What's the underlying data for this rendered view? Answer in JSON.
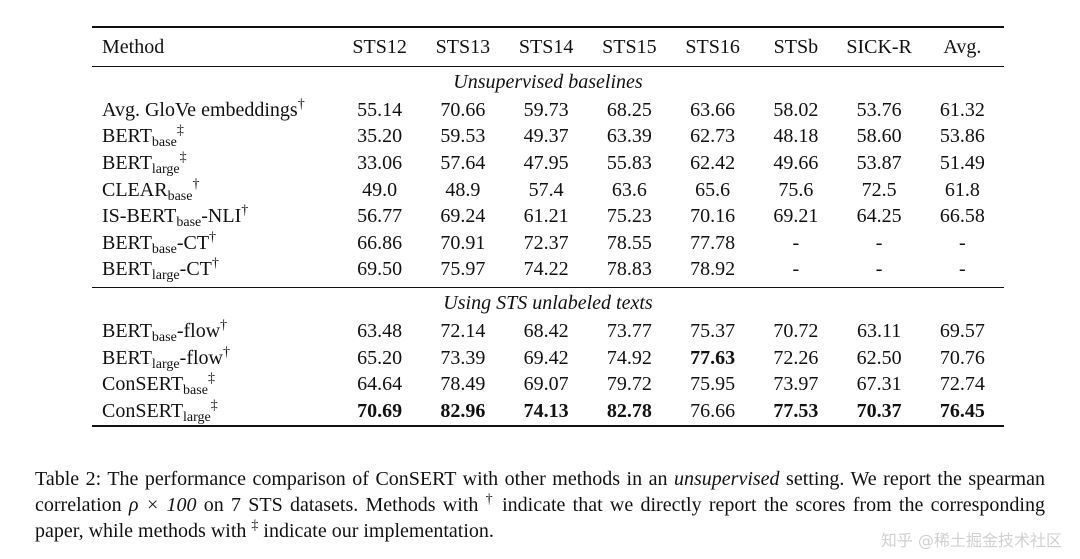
{
  "table": {
    "headers": [
      "Method",
      "STS12",
      "STS13",
      "STS14",
      "STS15",
      "STS16",
      "STSb",
      "SICK-R",
      "Avg."
    ],
    "sections": [
      {
        "title": "Unsupervised baselines",
        "rows": [
          {
            "name": "Avg. GloVe embeddings",
            "sub": "",
            "suffix": "",
            "mark": "†",
            "values": [
              "55.14",
              "70.66",
              "59.73",
              "68.25",
              "63.66",
              "58.02",
              "53.76",
              "61.32"
            ],
            "bold": []
          },
          {
            "name": "BERT",
            "sub": "base",
            "suffix": "",
            "mark": "‡",
            "values": [
              "35.20",
              "59.53",
              "49.37",
              "63.39",
              "62.73",
              "48.18",
              "58.60",
              "53.86"
            ],
            "bold": []
          },
          {
            "name": "BERT",
            "sub": "large",
            "suffix": "",
            "mark": "‡",
            "values": [
              "33.06",
              "57.64",
              "47.95",
              "55.83",
              "62.42",
              "49.66",
              "53.87",
              "51.49"
            ],
            "bold": []
          },
          {
            "name": "CLEAR",
            "sub": "base",
            "suffix": "",
            "mark": "†",
            "values": [
              "49.0",
              "48.9",
              "57.4",
              "63.6",
              "65.6",
              "75.6",
              "72.5",
              "61.8"
            ],
            "bold": []
          },
          {
            "name": "IS-BERT",
            "sub": "base",
            "suffix": "-NLI",
            "mark": "†",
            "values": [
              "56.77",
              "69.24",
              "61.21",
              "75.23",
              "70.16",
              "69.21",
              "64.25",
              "66.58"
            ],
            "bold": []
          },
          {
            "name": "BERT",
            "sub": "base",
            "suffix": "-CT",
            "mark": "†",
            "values": [
              "66.86",
              "70.91",
              "72.37",
              "78.55",
              "77.78",
              "-",
              "-",
              "-"
            ],
            "bold": []
          },
          {
            "name": "BERT",
            "sub": "large",
            "suffix": "-CT",
            "mark": "†",
            "values": [
              "69.50",
              "75.97",
              "74.22",
              "78.83",
              "78.92",
              "-",
              "-",
              "-"
            ],
            "bold": []
          }
        ]
      },
      {
        "title": "Using STS unlabeled texts",
        "rows": [
          {
            "name": "BERT",
            "sub": "base",
            "suffix": "-flow",
            "mark": "†",
            "values": [
              "63.48",
              "72.14",
              "68.42",
              "73.77",
              "75.37",
              "70.72",
              "63.11",
              "69.57"
            ],
            "bold": []
          },
          {
            "name": "BERT",
            "sub": "large",
            "suffix": "-flow",
            "mark": "†",
            "values": [
              "65.20",
              "73.39",
              "69.42",
              "74.92",
              "77.63",
              "72.26",
              "62.50",
              "70.76"
            ],
            "bold": [
              4
            ]
          },
          {
            "name": "ConSERT",
            "sub": "base",
            "suffix": "",
            "mark": "‡",
            "values": [
              "64.64",
              "78.49",
              "69.07",
              "79.72",
              "75.95",
              "73.97",
              "67.31",
              "72.74"
            ],
            "bold": []
          },
          {
            "name": "ConSERT",
            "sub": "large",
            "suffix": "",
            "mark": "‡",
            "values": [
              "70.69",
              "82.96",
              "74.13",
              "82.78",
              "76.66",
              "77.53",
              "70.37",
              "76.45"
            ],
            "bold": [
              0,
              1,
              2,
              3,
              5,
              6,
              7
            ]
          }
        ]
      }
    ]
  },
  "caption": {
    "p1": "Table 2: The performance comparison of ConSERT with other methods in an ",
    "em": "unsupervised",
    "p2": " setting. We report the spearman correlation ",
    "math": "ρ × 100",
    "p3": " on 7 STS datasets. Methods with ",
    "dagger": "†",
    "p4": " indicate that we directly report the scores from the corresponding paper, while methods with ",
    "ddagger": "‡",
    "p5": " indicate our implementation."
  },
  "watermark": "知乎 @稀土掘金技术社区"
}
